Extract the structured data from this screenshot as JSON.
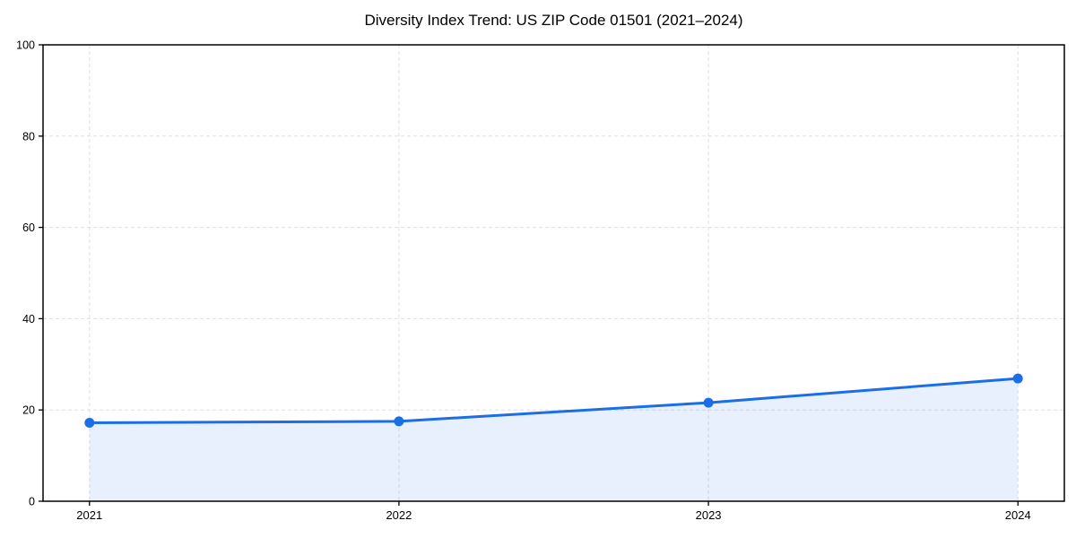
{
  "chart_data": {
    "type": "area",
    "title": "Diversity Index Trend: US ZIP Code 01501 (2021–2024)",
    "x": [
      2021,
      2022,
      2023,
      2024
    ],
    "values": [
      17.2,
      17.5,
      21.6,
      26.9
    ],
    "xticklabels": [
      "2021",
      "2022",
      "2023",
      "2024"
    ],
    "yticks": [
      0,
      20,
      40,
      60,
      80,
      100
    ],
    "ylim": [
      0,
      100
    ],
    "xlabel": "",
    "ylabel": "",
    "legend": "none",
    "grid": "both-dashed",
    "colors": {
      "line": "#1a6fe8",
      "marker": "#1a6fe8",
      "fill": "#1a6fe8",
      "fill_opacity": 0.1,
      "grid": "#e0e0e0",
      "spine": "#000000",
      "background": "#ffffff"
    }
  }
}
